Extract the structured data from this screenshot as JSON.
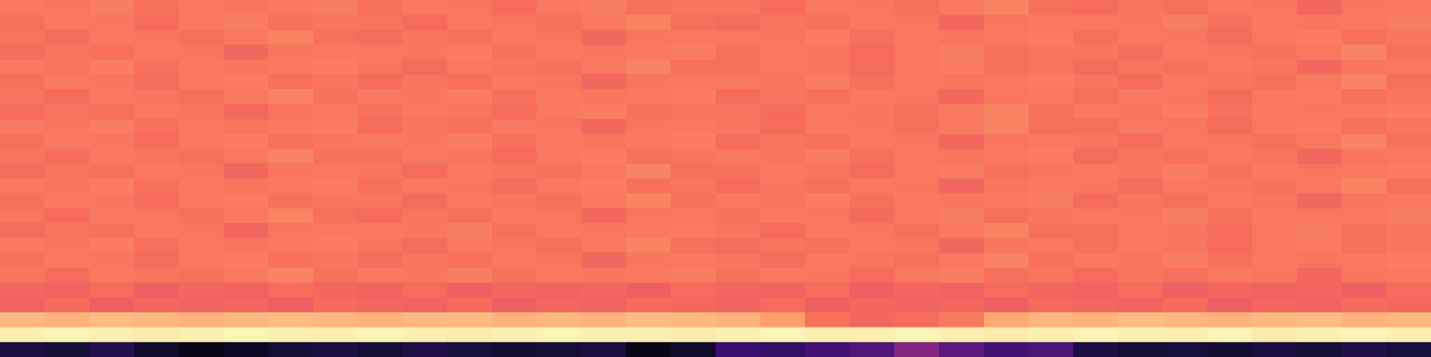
{
  "chart_data": {
    "type": "heatmap",
    "tick_labels": false,
    "zlim": [
      0,
      1
    ],
    "cells": [
      [
        0.72,
        0.71,
        0.73,
        0.7,
        0.72,
        0.71,
        0.72,
        0.73,
        0.7,
        0.72,
        0.71,
        0.69,
        0.72,
        0.73,
        0.7,
        0.71,
        0.71,
        0.69,
        0.72,
        0.71,
        0.7,
        0.72,
        0.74,
        0.7,
        0.69,
        0.71,
        0.7,
        0.72,
        0.71,
        0.68,
        0.71,
        0.72
      ],
      [
        0.7,
        0.72,
        0.71,
        0.69,
        0.72,
        0.73,
        0.7,
        0.71,
        0.71,
        0.69,
        0.72,
        0.71,
        0.7,
        0.72,
        0.74,
        0.7,
        0.69,
        0.71,
        0.7,
        0.72,
        0.71,
        0.68,
        0.71,
        0.72,
        0.72,
        0.71,
        0.73,
        0.7,
        0.72,
        0.71,
        0.72,
        0.73
      ],
      [
        0.71,
        0.69,
        0.72,
        0.71,
        0.7,
        0.72,
        0.74,
        0.7,
        0.69,
        0.71,
        0.7,
        0.72,
        0.71,
        0.68,
        0.71,
        0.72,
        0.72,
        0.71,
        0.73,
        0.7,
        0.72,
        0.71,
        0.72,
        0.73,
        0.7,
        0.72,
        0.71,
        0.69,
        0.72,
        0.73,
        0.7,
        0.71
      ],
      [
        0.69,
        0.71,
        0.7,
        0.72,
        0.71,
        0.68,
        0.71,
        0.72,
        0.72,
        0.71,
        0.73,
        0.7,
        0.72,
        0.71,
        0.72,
        0.73,
        0.7,
        0.72,
        0.71,
        0.69,
        0.72,
        0.73,
        0.7,
        0.71,
        0.71,
        0.69,
        0.72,
        0.71,
        0.7,
        0.72,
        0.74,
        0.7
      ],
      [
        0.72,
        0.71,
        0.73,
        0.7,
        0.72,
        0.71,
        0.72,
        0.73,
        0.71,
        0.69,
        0.72,
        0.71,
        0.7,
        0.72,
        0.74,
        0.7,
        0.7,
        0.72,
        0.71,
        0.69,
        0.72,
        0.73,
        0.7,
        0.71,
        0.69,
        0.71,
        0.7,
        0.72,
        0.71,
        0.68,
        0.71,
        0.72
      ],
      [
        0.7,
        0.72,
        0.71,
        0.69,
        0.72,
        0.73,
        0.7,
        0.71,
        0.69,
        0.71,
        0.7,
        0.72,
        0.71,
        0.68,
        0.71,
        0.72,
        0.72,
        0.71,
        0.73,
        0.7,
        0.72,
        0.71,
        0.72,
        0.73,
        0.71,
        0.69,
        0.72,
        0.71,
        0.7,
        0.72,
        0.74,
        0.7
      ],
      [
        0.71,
        0.69,
        0.72,
        0.71,
        0.7,
        0.72,
        0.74,
        0.7,
        0.72,
        0.71,
        0.73,
        0.7,
        0.72,
        0.71,
        0.72,
        0.73,
        0.69,
        0.71,
        0.7,
        0.72,
        0.71,
        0.68,
        0.71,
        0.72,
        0.7,
        0.72,
        0.71,
        0.69,
        0.72,
        0.73,
        0.7,
        0.71
      ],
      [
        0.69,
        0.71,
        0.7,
        0.72,
        0.71,
        0.68,
        0.71,
        0.72,
        0.7,
        0.72,
        0.71,
        0.69,
        0.72,
        0.73,
        0.7,
        0.71,
        0.71,
        0.69,
        0.72,
        0.71,
        0.7,
        0.72,
        0.74,
        0.7,
        0.72,
        0.71,
        0.73,
        0.7,
        0.72,
        0.71,
        0.72,
        0.73
      ],
      [
        0.72,
        0.71,
        0.73,
        0.7,
        0.72,
        0.71,
        0.72,
        0.73,
        0.69,
        0.71,
        0.7,
        0.72,
        0.71,
        0.68,
        0.71,
        0.72,
        0.71,
        0.69,
        0.72,
        0.71,
        0.7,
        0.72,
        0.74,
        0.7,
        0.7,
        0.72,
        0.71,
        0.69,
        0.72,
        0.73,
        0.7,
        0.71
      ],
      [
        0.7,
        0.72,
        0.71,
        0.69,
        0.72,
        0.73,
        0.7,
        0.71,
        0.72,
        0.71,
        0.73,
        0.7,
        0.72,
        0.71,
        0.72,
        0.73,
        0.69,
        0.71,
        0.7,
        0.72,
        0.71,
        0.68,
        0.71,
        0.72,
        0.71,
        0.69,
        0.72,
        0.71,
        0.7,
        0.72,
        0.74,
        0.7
      ],
      [
        0.71,
        0.69,
        0.72,
        0.71,
        0.7,
        0.72,
        0.74,
        0.7,
        0.7,
        0.72,
        0.71,
        0.69,
        0.72,
        0.73,
        0.7,
        0.71,
        0.72,
        0.71,
        0.73,
        0.7,
        0.72,
        0.71,
        0.72,
        0.73,
        0.69,
        0.71,
        0.7,
        0.72,
        0.71,
        0.68,
        0.71,
        0.72
      ],
      [
        0.69,
        0.71,
        0.7,
        0.72,
        0.71,
        0.68,
        0.71,
        0.72,
        0.71,
        0.69,
        0.72,
        0.71,
        0.7,
        0.72,
        0.74,
        0.7,
        0.7,
        0.72,
        0.71,
        0.69,
        0.72,
        0.73,
        0.7,
        0.71,
        0.72,
        0.71,
        0.73,
        0.7,
        0.72,
        0.71,
        0.72,
        0.73
      ],
      [
        0.72,
        0.71,
        0.73,
        0.7,
        0.72,
        0.71,
        0.72,
        0.73,
        0.7,
        0.72,
        0.71,
        0.69,
        0.72,
        0.73,
        0.7,
        0.71,
        0.69,
        0.71,
        0.7,
        0.72,
        0.71,
        0.68,
        0.71,
        0.72,
        0.71,
        0.69,
        0.72,
        0.71,
        0.7,
        0.72,
        0.74,
        0.7
      ],
      [
        0.7,
        0.72,
        0.71,
        0.69,
        0.72,
        0.73,
        0.7,
        0.71,
        0.71,
        0.69,
        0.72,
        0.71,
        0.7,
        0.72,
        0.74,
        0.7,
        0.72,
        0.71,
        0.73,
        0.7,
        0.72,
        0.71,
        0.72,
        0.73,
        0.69,
        0.71,
        0.7,
        0.72,
        0.71,
        0.68,
        0.71,
        0.72
      ],
      [
        0.71,
        0.69,
        0.72,
        0.71,
        0.7,
        0.72,
        0.74,
        0.7,
        0.69,
        0.71,
        0.7,
        0.72,
        0.71,
        0.68,
        0.71,
        0.72,
        0.7,
        0.72,
        0.71,
        0.69,
        0.72,
        0.73,
        0.7,
        0.71,
        0.72,
        0.71,
        0.73,
        0.7,
        0.72,
        0.71,
        0.72,
        0.73
      ],
      [
        0.69,
        0.71,
        0.7,
        0.72,
        0.71,
        0.68,
        0.71,
        0.72,
        0.72,
        0.71,
        0.73,
        0.7,
        0.72,
        0.71,
        0.72,
        0.73,
        0.71,
        0.69,
        0.72,
        0.71,
        0.7,
        0.72,
        0.74,
        0.7,
        0.7,
        0.72,
        0.71,
        0.69,
        0.72,
        0.73,
        0.7,
        0.71
      ],
      [
        0.72,
        0.71,
        0.73,
        0.7,
        0.72,
        0.71,
        0.72,
        0.73,
        0.71,
        0.69,
        0.72,
        0.71,
        0.7,
        0.72,
        0.74,
        0.7,
        0.69,
        0.71,
        0.7,
        0.72,
        0.71,
        0.68,
        0.71,
        0.72,
        0.7,
        0.72,
        0.71,
        0.69,
        0.72,
        0.73,
        0.7,
        0.71
      ],
      [
        0.7,
        0.72,
        0.71,
        0.69,
        0.72,
        0.73,
        0.7,
        0.71,
        0.69,
        0.71,
        0.7,
        0.72,
        0.71,
        0.68,
        0.71,
        0.72,
        0.71,
        0.69,
        0.72,
        0.71,
        0.7,
        0.72,
        0.74,
        0.7,
        0.72,
        0.71,
        0.73,
        0.7,
        0.72,
        0.71,
        0.72,
        0.73
      ],
      [
        0.71,
        0.69,
        0.72,
        0.71,
        0.7,
        0.72,
        0.74,
        0.7,
        0.72,
        0.71,
        0.73,
        0.7,
        0.72,
        0.71,
        0.72,
        0.73,
        0.7,
        0.72,
        0.71,
        0.69,
        0.72,
        0.73,
        0.7,
        0.71,
        0.69,
        0.71,
        0.7,
        0.72,
        0.71,
        0.68,
        0.71,
        0.72
      ],
      [
        0.68,
        0.67,
        0.69,
        0.66,
        0.68,
        0.67,
        0.69,
        0.68,
        0.67,
        0.69,
        0.66,
        0.68,
        0.67,
        0.68,
        0.66,
        0.69,
        0.68,
        0.67,
        0.69,
        0.66,
        0.68,
        0.67,
        0.69,
        0.68,
        0.67,
        0.69,
        0.66,
        0.68,
        0.67,
        0.68,
        0.66,
        0.69
      ],
      [
        0.67,
        0.69,
        0.66,
        0.68,
        0.67,
        0.68,
        0.66,
        0.69,
        0.68,
        0.67,
        0.69,
        0.66,
        0.68,
        0.67,
        0.69,
        0.68,
        0.67,
        0.69,
        0.66,
        0.68,
        0.67,
        0.68,
        0.66,
        0.69,
        0.68,
        0.67,
        0.69,
        0.66,
        0.68,
        0.67,
        0.69,
        0.68
      ],
      [
        0.85,
        0.84,
        0.86,
        0.85,
        0.84,
        0.85,
        0.86,
        0.85,
        0.84,
        0.85,
        0.86,
        0.84,
        0.85,
        0.84,
        0.86,
        0.85,
        0.84,
        0.8,
        0.7,
        0.68,
        0.69,
        0.72,
        0.82,
        0.85,
        0.84,
        0.86,
        0.85,
        0.84,
        0.85,
        0.86,
        0.84,
        0.85
      ],
      [
        0.97,
        0.98,
        0.97,
        0.96,
        0.97,
        0.98,
        0.97,
        0.97,
        0.98,
        0.97,
        0.96,
        0.97,
        0.98,
        0.97,
        0.97,
        0.96,
        0.97,
        0.98,
        0.97,
        0.97,
        0.98,
        0.97,
        0.96,
        0.97,
        0.98,
        0.97,
        0.97,
        0.98,
        0.96,
        0.97,
        0.98,
        0.97
      ],
      [
        0.12,
        0.1,
        0.14,
        0.08,
        0.04,
        0.06,
        0.1,
        0.12,
        0.1,
        0.13,
        0.11,
        0.09,
        0.1,
        0.12,
        0.04,
        0.08,
        0.2,
        0.18,
        0.22,
        0.25,
        0.38,
        0.28,
        0.22,
        0.24,
        0.12,
        0.1,
        0.11,
        0.09,
        0.12,
        0.1,
        0.13,
        0.11
      ]
    ]
  }
}
